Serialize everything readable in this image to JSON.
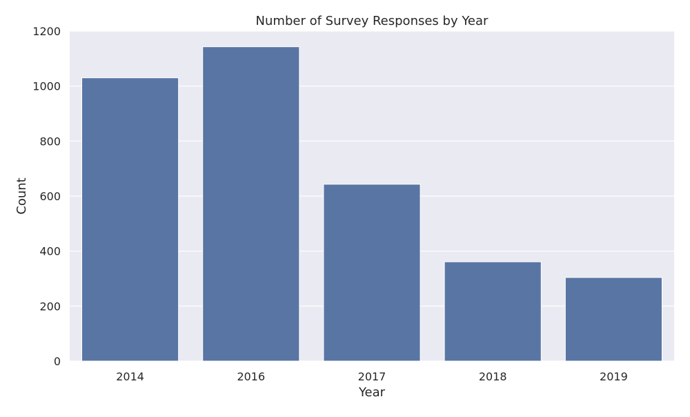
{
  "chart_data": {
    "type": "bar",
    "title": "Number of Survey Responses by Year",
    "xlabel": "Year",
    "ylabel": "Count",
    "categories": [
      "2014",
      "2016",
      "2017",
      "2018",
      "2019"
    ],
    "values": [
      1030,
      1143,
      643,
      361,
      304
    ],
    "ylim": [
      0,
      1200
    ],
    "yticks": [
      0,
      200,
      400,
      600,
      800,
      1000,
      1200
    ],
    "grid": true,
    "legend": "none"
  },
  "colors": {
    "bar": "#5975a4",
    "plot_background": "#eaeaf2",
    "grid": "#ffffff",
    "text": "#262626"
  }
}
